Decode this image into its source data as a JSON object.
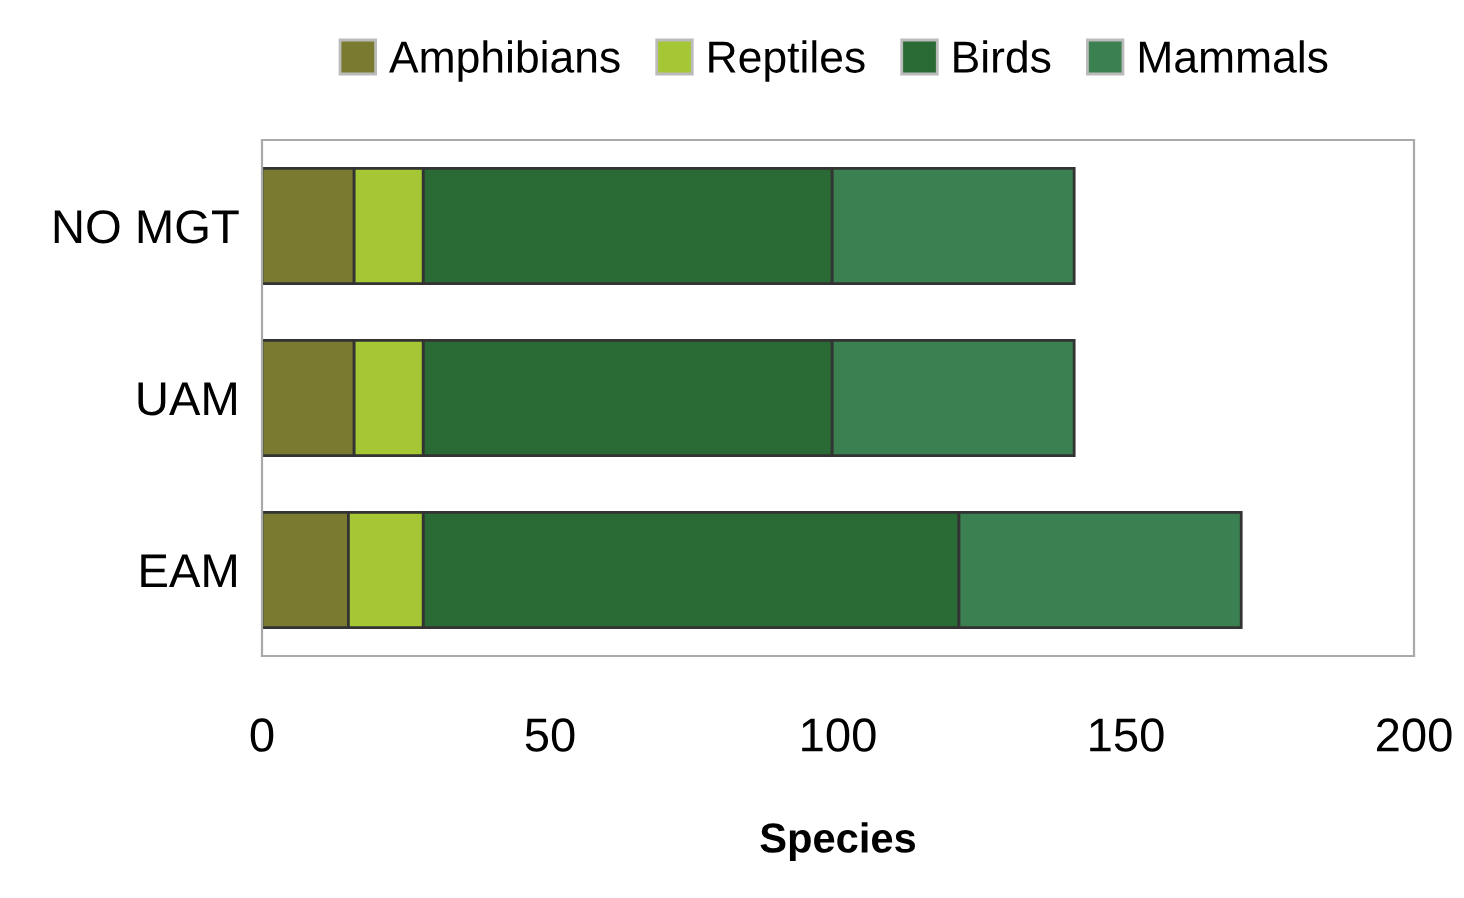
{
  "chart_data": {
    "type": "bar",
    "orientation": "horizontal",
    "stacked": true,
    "xlabel": "Species",
    "categories": [
      "NO MGT",
      "UAM",
      "EAM"
    ],
    "series": [
      {
        "name": "Amphibians",
        "color": "#7a7a30",
        "values": [
          16,
          16,
          15
        ]
      },
      {
        "name": "Reptiles",
        "color": "#a5c735",
        "values": [
          12,
          12,
          13
        ]
      },
      {
        "name": "Birds",
        "color": "#2a6a35",
        "values": [
          71,
          71,
          93
        ]
      },
      {
        "name": "Mammals",
        "color": "#3b8050",
        "values": [
          42,
          42,
          49
        ]
      }
    ],
    "xlim": [
      0,
      200
    ],
    "xticks": [
      0,
      50,
      100,
      150,
      200
    ],
    "grid": false,
    "legend": "top"
  }
}
